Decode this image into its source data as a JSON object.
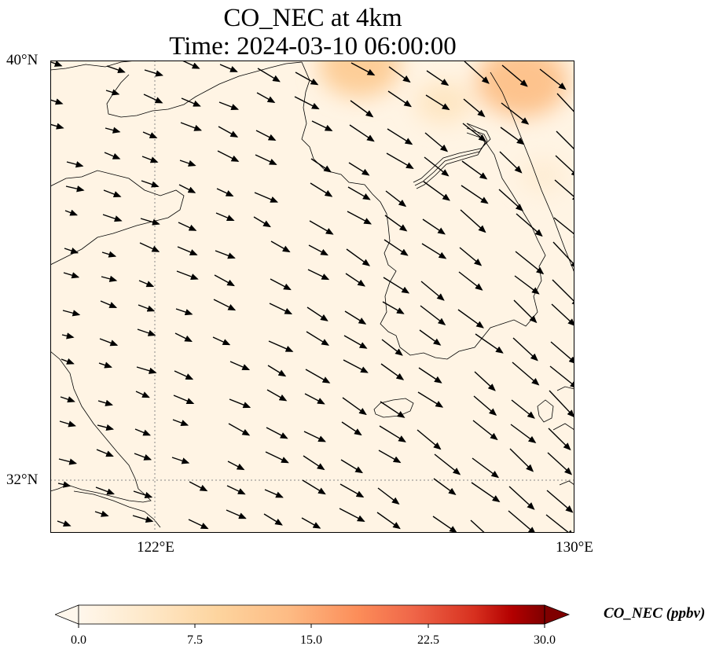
{
  "title": {
    "line1": "CO_NEC at 4km",
    "line2": "Time: 2024-03-10 06:00:00"
  },
  "axes": {
    "lat_ticks": [
      "40°N",
      "32°N"
    ],
    "lon_ticks": [
      "122°E",
      "130°E"
    ],
    "lon_range": [
      120,
      130
    ],
    "lat_range": [
      31,
      40
    ],
    "gridlines": "dotted at 122°E and 32°N"
  },
  "colorbar": {
    "label": "CO_NEC (ppbv)",
    "ticks": [
      "0.0",
      "7.5",
      "15.0",
      "22.5",
      "30.0"
    ],
    "range": [
      0,
      30
    ],
    "colormap": "OrRd",
    "extend": "both"
  },
  "colors": {
    "field_low": "#fff7ec",
    "field_mid": "#fdd49e",
    "field_high": "#ef6548",
    "cbar_max": "#7f0000",
    "coast": "#000000"
  },
  "chart_data": {
    "type": "heatmap",
    "variable": "CO_NEC",
    "units": "ppbv",
    "level": "4km",
    "time": "2024-03-10 06:00:00",
    "background_ppbv": 1,
    "hotspots": [
      {
        "lon": 125.9,
        "lat": 39.9,
        "value": 10
      },
      {
        "lon": 129.0,
        "lat": 39.6,
        "value": 12
      },
      {
        "lon": 127.5,
        "lat": 39.2,
        "value": 5
      },
      {
        "lon": 129.4,
        "lat": 37.8,
        "value": 3
      }
    ],
    "wind_vectors": "uniform west-northwest flow, roughly toward the east-southeast"
  }
}
